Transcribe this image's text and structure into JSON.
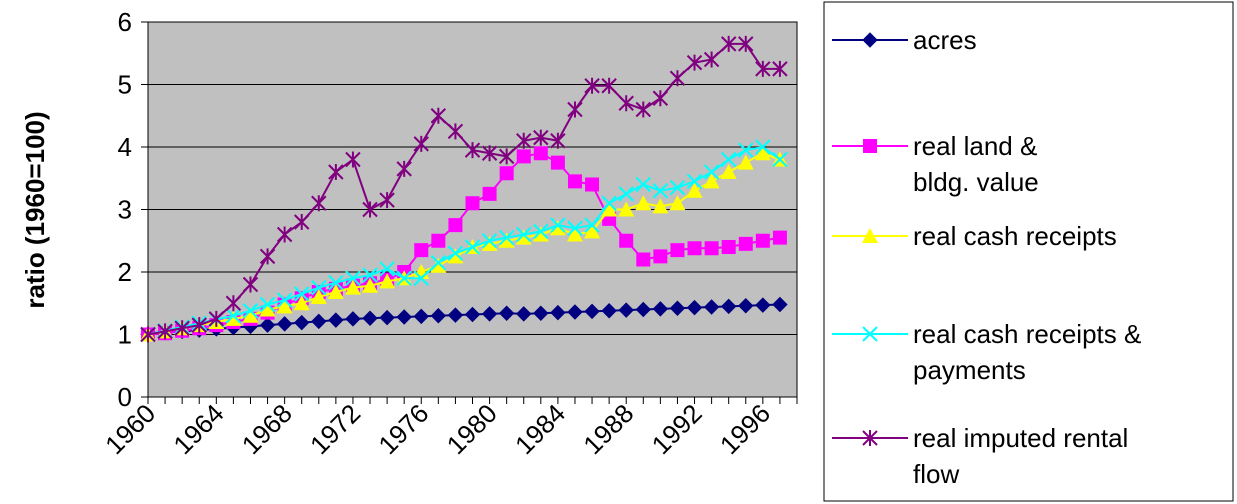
{
  "chart_data": {
    "type": "line",
    "title": "",
    "xlabel": "",
    "ylabel": "ratio (1960=100)",
    "xlim": [
      1960,
      1997
    ],
    "ylim": [
      0,
      6
    ],
    "yticks": [
      0,
      1,
      2,
      3,
      4,
      5,
      6
    ],
    "xticks": [
      "1960",
      "1964",
      "1968",
      "1972",
      "1976",
      "1980",
      "1984",
      "1988",
      "1992",
      "1996"
    ],
    "grid": "horizontal",
    "legend_position": "right",
    "plot_background": "#c0c0c0",
    "x": [
      1960,
      1961,
      1962,
      1963,
      1964,
      1965,
      1966,
      1967,
      1968,
      1969,
      1970,
      1971,
      1972,
      1973,
      1974,
      1975,
      1976,
      1977,
      1978,
      1979,
      1980,
      1981,
      1982,
      1983,
      1984,
      1985,
      1986,
      1987,
      1988,
      1989,
      1990,
      1991,
      1992,
      1993,
      1994,
      1995,
      1996,
      1997
    ],
    "series": [
      {
        "name": "acres",
        "color": "#000080",
        "marker": "diamond",
        "values": [
          1.0,
          1.03,
          1.05,
          1.07,
          1.09,
          1.11,
          1.13,
          1.15,
          1.17,
          1.19,
          1.21,
          1.23,
          1.25,
          1.26,
          1.27,
          1.28,
          1.29,
          1.3,
          1.31,
          1.32,
          1.33,
          1.34,
          1.33,
          1.34,
          1.35,
          1.36,
          1.37,
          1.38,
          1.39,
          1.4,
          1.41,
          1.42,
          1.43,
          1.44,
          1.45,
          1.46,
          1.47,
          1.48
        ]
      },
      {
        "name": "real land & bldg. value",
        "color": "#ff00ff",
        "marker": "square",
        "values": [
          1.0,
          1.02,
          1.06,
          1.1,
          1.15,
          1.2,
          1.25,
          1.35,
          1.48,
          1.58,
          1.68,
          1.73,
          1.78,
          1.82,
          1.88,
          2.0,
          2.35,
          2.5,
          2.75,
          3.1,
          3.25,
          3.58,
          3.85,
          3.9,
          3.75,
          3.45,
          3.4,
          2.85,
          2.5,
          2.2,
          2.25,
          2.35,
          2.38,
          2.38,
          2.4,
          2.45,
          2.5,
          2.55
        ]
      },
      {
        "name": "real cash receipts",
        "color": "#ffff00",
        "marker": "triangle",
        "values": [
          1.0,
          1.05,
          1.1,
          1.15,
          1.2,
          1.25,
          1.3,
          1.4,
          1.45,
          1.5,
          1.6,
          1.68,
          1.75,
          1.78,
          1.85,
          1.9,
          2.0,
          2.1,
          2.25,
          2.4,
          2.45,
          2.5,
          2.55,
          2.6,
          2.7,
          2.6,
          2.65,
          3.0,
          3.0,
          3.1,
          3.05,
          3.1,
          3.3,
          3.45,
          3.6,
          3.75,
          3.9,
          3.8
        ]
      },
      {
        "name": "real cash receipts & payments",
        "color": "#00ffff",
        "marker": "x",
        "values": [
          1.0,
          1.06,
          1.12,
          1.18,
          1.24,
          1.3,
          1.38,
          1.48,
          1.55,
          1.65,
          1.75,
          1.83,
          1.9,
          1.95,
          2.05,
          1.9,
          1.9,
          2.15,
          2.3,
          2.4,
          2.5,
          2.55,
          2.6,
          2.65,
          2.75,
          2.7,
          2.75,
          3.1,
          3.25,
          3.4,
          3.3,
          3.35,
          3.45,
          3.6,
          3.8,
          3.95,
          4.0,
          3.8
        ]
      },
      {
        "name": "real imputed rental flow",
        "color": "#800080",
        "marker": "star",
        "values": [
          1.0,
          1.05,
          1.1,
          1.15,
          1.25,
          1.5,
          1.8,
          2.25,
          2.6,
          2.8,
          3.1,
          3.6,
          3.8,
          3.0,
          3.15,
          3.65,
          4.05,
          4.5,
          4.25,
          3.95,
          3.9,
          3.85,
          4.1,
          4.15,
          4.1,
          4.6,
          4.98,
          4.98,
          4.7,
          4.6,
          4.78,
          5.1,
          5.35,
          5.4,
          5.65,
          5.65,
          5.25,
          5.25
        ]
      }
    ]
  }
}
